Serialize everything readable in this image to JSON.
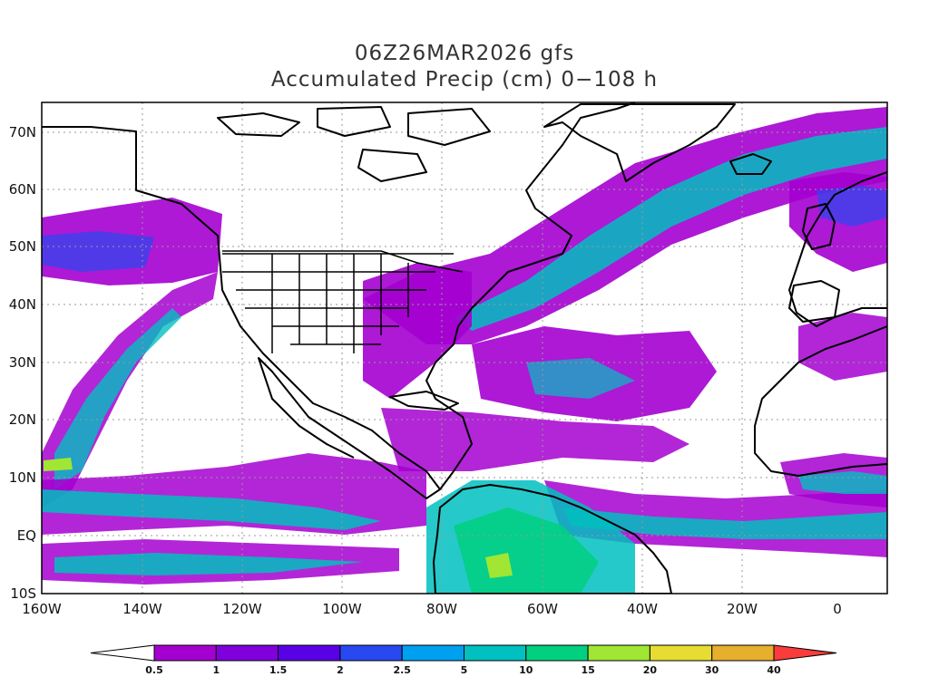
{
  "title": {
    "line1": "06Z26MAR2026 gfs",
    "line2": "Accumulated Precip (cm) 0−108 h"
  },
  "map": {
    "lat_labels": [
      "70N",
      "60N",
      "50N",
      "40N",
      "30N",
      "20N",
      "10N",
      "EQ",
      "10S"
    ],
    "lon_labels": [
      "160W",
      "140W",
      "120W",
      "100W",
      "80W",
      "60W",
      "40W",
      "20W",
      "0"
    ]
  },
  "colorbar": {
    "labels": [
      "0.5",
      "1",
      "1.5",
      "2",
      "2.5",
      "5",
      "10",
      "15",
      "20",
      "30",
      "40"
    ],
    "colors": [
      "#a400d0",
      "#7f00dc",
      "#5a00e6",
      "#2848f0",
      "#00a0f0",
      "#00c0c0",
      "#00d080",
      "#a0e632",
      "#e6dc32",
      "#e6af2d",
      "#f08228",
      "#fa3c3c"
    ]
  },
  "palette": {
    "land_outline": "#000000",
    "grid": "#9a9a9a"
  }
}
